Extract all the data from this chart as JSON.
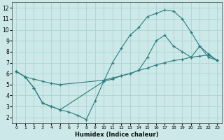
{
  "xlabel": "Humidex (Indice chaleur)",
  "bg_color": "#cce8e8",
  "grid_color": "#aad4d4",
  "line_color": "#2d7d7d",
  "xlim": [
    -0.5,
    23.5
  ],
  "ylim": [
    1.5,
    12.5
  ],
  "xticks": [
    0,
    1,
    2,
    3,
    4,
    5,
    6,
    7,
    8,
    9,
    10,
    11,
    12,
    13,
    14,
    15,
    16,
    17,
    18,
    19,
    20,
    21,
    22,
    23
  ],
  "yticks": [
    2,
    3,
    4,
    5,
    6,
    7,
    8,
    9,
    10,
    11,
    12
  ],
  "line1_x": [
    0,
    1,
    2,
    3,
    4,
    5,
    10,
    11,
    12,
    13,
    14,
    15,
    16,
    17,
    18,
    19,
    20,
    21,
    22,
    23
  ],
  "line1_y": [
    6.2,
    5.7,
    4.7,
    3.3,
    3.0,
    2.7,
    5.3,
    7.0,
    8.3,
    9.5,
    10.2,
    11.2,
    11.5,
    11.8,
    11.7,
    11.0,
    9.8,
    8.5,
    7.5,
    7.2
  ],
  "line2_x": [
    0,
    1,
    2,
    3,
    4,
    5,
    10,
    11,
    12,
    13,
    14,
    15,
    16,
    17,
    18,
    19,
    20,
    21,
    22,
    23
  ],
  "line2_y": [
    6.2,
    5.7,
    5.5,
    5.3,
    5.1,
    5.0,
    5.4,
    5.6,
    5.8,
    6.0,
    6.3,
    6.5,
    6.8,
    7.0,
    7.2,
    7.3,
    7.5,
    7.6,
    7.7,
    7.2
  ],
  "line3_x": [
    0,
    1,
    2,
    3,
    4,
    5,
    6,
    7,
    8,
    9,
    10,
    11,
    12,
    13,
    14,
    15,
    16,
    17,
    18,
    19,
    20,
    21,
    22,
    23
  ],
  "line3_y": [
    6.2,
    5.7,
    4.7,
    3.3,
    3.0,
    2.7,
    2.5,
    2.2,
    1.8,
    3.5,
    5.3,
    5.5,
    5.8,
    6.0,
    6.3,
    7.5,
    9.0,
    9.5,
    8.5,
    8.0,
    7.5,
    8.5,
    7.8,
    7.2
  ]
}
